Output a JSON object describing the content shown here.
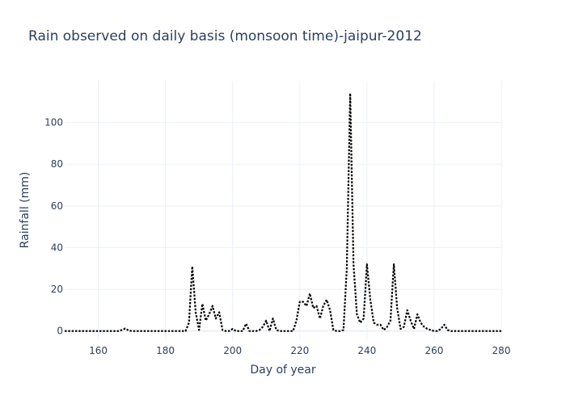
{
  "chart_data": {
    "type": "line",
    "title": "Rain observed on daily basis (monsoon time)-jaipur-2012",
    "xlabel": "Day of year",
    "ylabel": "Rainfall (mm)",
    "xlim": [
      150,
      280
    ],
    "ylim": [
      -4,
      120
    ],
    "x_ticks": [
      160,
      180,
      200,
      220,
      240,
      260,
      280
    ],
    "y_ticks": [
      0,
      20,
      40,
      60,
      80,
      100
    ],
    "grid": true,
    "line_color": "#000000",
    "line_style": "dotted",
    "series": [
      {
        "x": [
          150,
          151,
          152,
          153,
          154,
          155,
          156,
          157,
          158,
          159,
          160,
          161,
          162,
          163,
          164,
          165,
          166,
          167,
          168,
          169,
          170,
          171,
          172,
          173,
          174,
          175,
          176,
          177,
          178,
          179,
          180,
          181,
          182,
          183,
          184,
          185,
          186,
          187,
          188,
          189,
          190,
          191,
          192,
          193,
          194,
          195,
          196,
          197,
          198,
          199,
          200,
          201,
          202,
          203,
          204,
          205,
          206,
          207,
          208,
          209,
          210,
          211,
          212,
          213,
          214,
          215,
          216,
          217,
          218,
          219,
          220,
          221,
          222,
          223,
          224,
          225,
          226,
          227,
          228,
          229,
          230,
          231,
          232,
          233,
          234,
          235,
          236,
          237,
          238,
          239,
          240,
          241,
          242,
          243,
          244,
          245,
          246,
          247,
          248,
          249,
          250,
          251,
          252,
          253,
          254,
          255,
          256,
          257,
          258,
          259,
          260,
          261,
          262,
          263,
          264,
          265,
          266,
          267,
          268,
          269,
          270,
          271,
          272,
          273,
          274,
          275,
          276,
          277,
          278,
          279,
          280
        ],
        "y": [
          0,
          0,
          0,
          0,
          0,
          0,
          0,
          0,
          0,
          0,
          0,
          0,
          0,
          0,
          0,
          0,
          0,
          0.5,
          1.2,
          0.3,
          0,
          0,
          0,
          0,
          0,
          0,
          0,
          0,
          0,
          0,
          0,
          0,
          0,
          0,
          0,
          0,
          0,
          4,
          31,
          9,
          0.5,
          13,
          5,
          8,
          12,
          6,
          9,
          0.5,
          0,
          0,
          1,
          0,
          0,
          0,
          3.5,
          0,
          0,
          0,
          0.5,
          2,
          5,
          0,
          6,
          0.5,
          0,
          0,
          0,
          0,
          0,
          5,
          14,
          14,
          12,
          18,
          11,
          12,
          6,
          12,
          15,
          10,
          0.5,
          0,
          0,
          0.5,
          30,
          114,
          32,
          8,
          4,
          6,
          32,
          15,
          4,
          3,
          3,
          0.5,
          2,
          5,
          32,
          11,
          1,
          2,
          10,
          5,
          1,
          8,
          4,
          2,
          1,
          0.5,
          0,
          0,
          1,
          3,
          0.5,
          0,
          0,
          0,
          0,
          0,
          0,
          0,
          0,
          0,
          0,
          0,
          0,
          0,
          0,
          0,
          0
        ]
      }
    ]
  }
}
